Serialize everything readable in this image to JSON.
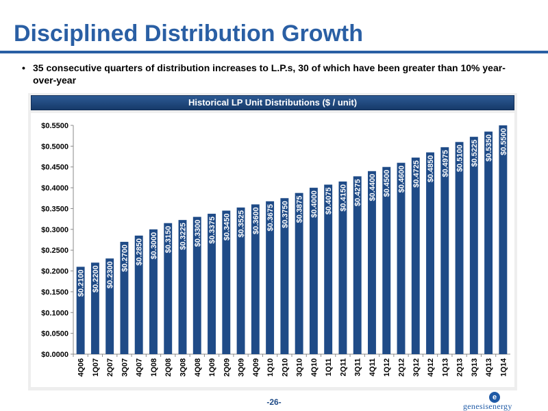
{
  "slide": {
    "title": "Disciplined Distribution Growth",
    "bullet": "35 consecutive quarters of distribution increases to L.P.s, 30 of which have been greater than 10% year-over-year",
    "page_number": "-26-",
    "logo_mark": "e",
    "logo_text": "genesisenergy"
  },
  "chart_data": {
    "type": "bar",
    "title": "Historical LP Unit Distributions ($ / unit)",
    "xlabel": "",
    "ylabel": "",
    "ylim": [
      0,
      0.55
    ],
    "y_ticks": [
      "$0.0000",
      "$0.0500",
      "$0.1000",
      "$0.1500",
      "$0.2000",
      "$0.2500",
      "$0.3000",
      "$0.3500",
      "$0.4000",
      "$0.4500",
      "$0.5000",
      "$0.5500"
    ],
    "y_tick_values": [
      0,
      0.05,
      0.1,
      0.15,
      0.2,
      0.25,
      0.3,
      0.35,
      0.4,
      0.45,
      0.5,
      0.55
    ],
    "categories": [
      "4Q06",
      "1Q07",
      "2Q07",
      "3Q07",
      "4Q07",
      "1Q08",
      "2Q08",
      "3Q08",
      "4Q08",
      "1Q09",
      "2Q09",
      "3Q09",
      "4Q09",
      "1Q10",
      "2Q10",
      "3Q10",
      "4Q10",
      "1Q11",
      "2Q11",
      "3Q11",
      "4Q11",
      "1Q12",
      "2Q12",
      "3Q12",
      "4Q12",
      "1Q13",
      "2Q13",
      "3Q13",
      "4Q13",
      "1Q14"
    ],
    "values": [
      0.21,
      0.22,
      0.23,
      0.27,
      0.285,
      0.3,
      0.315,
      0.3225,
      0.33,
      0.3375,
      0.345,
      0.3525,
      0.36,
      0.3675,
      0.375,
      0.3875,
      0.4,
      0.4075,
      0.415,
      0.4275,
      0.44,
      0.45,
      0.46,
      0.4725,
      0.485,
      0.4975,
      0.51,
      0.5225,
      0.535,
      0.55
    ],
    "labels": [
      "$0.2100",
      "$0.2200",
      "$0.2300",
      "$0.2700",
      "$0.2850",
      "$0.3000",
      "$0.3150",
      "$0.3225",
      "$0.3300",
      "$0.3375",
      "$0.3450",
      "$0.3525",
      "$0.3600",
      "$0.3675",
      "$0.3750",
      "$0.3875",
      "$0.4000",
      "$0.4075",
      "$0.4150",
      "$0.4275",
      "$0.4400",
      "$0.4500",
      "$0.4600",
      "$0.4725",
      "$0.4850",
      "$0.4975",
      "$0.5100",
      "$0.5225",
      "$0.5350",
      "$0.5500"
    ],
    "bar_color": "#1f4b87",
    "label_color": "#ffffff",
    "grid": false,
    "legend": "none"
  }
}
